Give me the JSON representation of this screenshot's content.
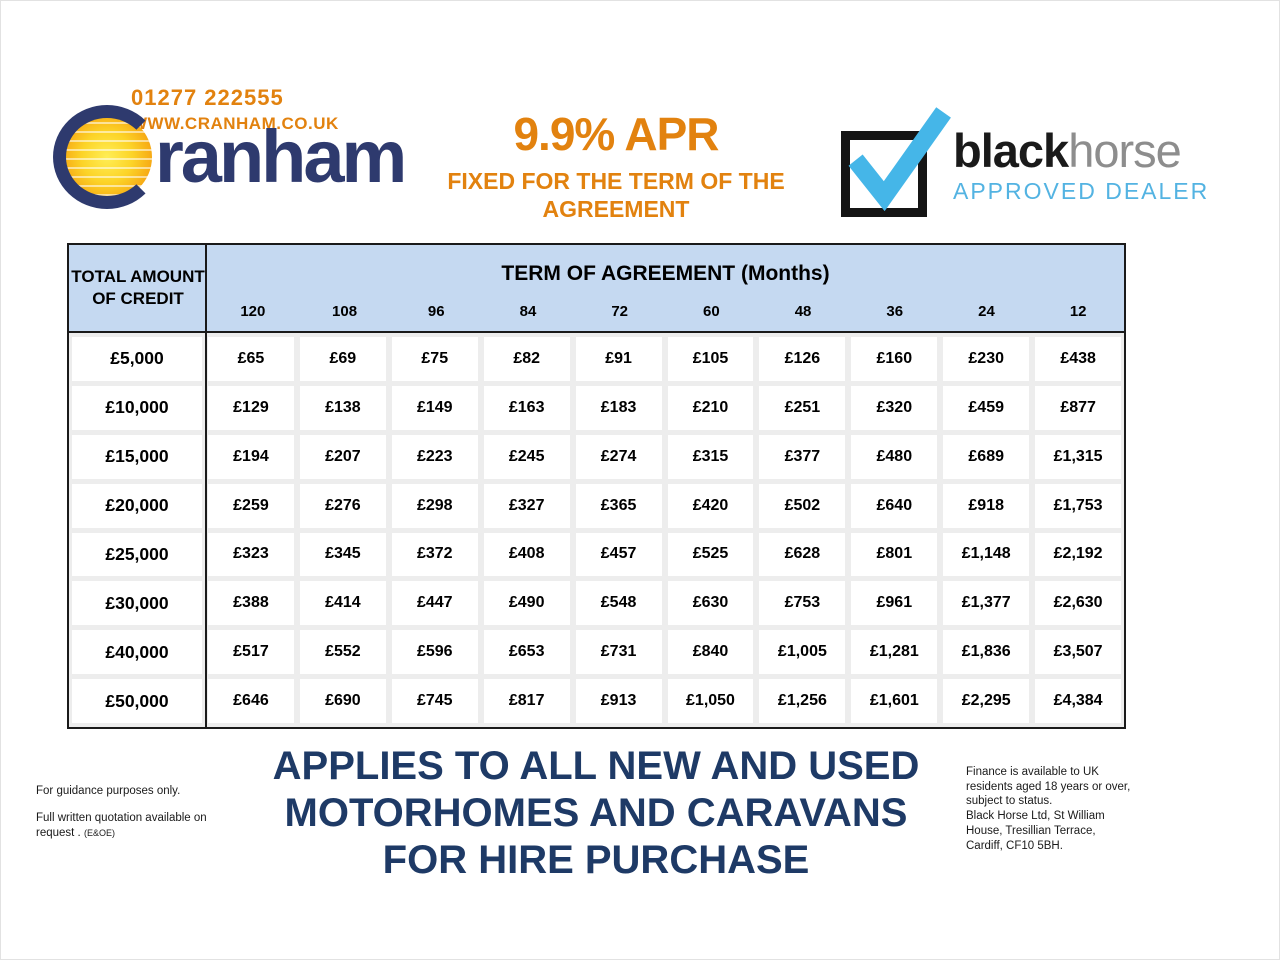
{
  "header": {
    "phone": "01277 222555",
    "website": "WWW.CRANHAM.CO.UK",
    "brand_rest": "ranham",
    "apr_title": "9.9% APR",
    "apr_subtitle": "FIXED FOR THE TERM OF THE AGREEMENT",
    "blackhorse": {
      "word_black": "black",
      "word_horse": "horse",
      "tagline": "APPROVED DEALER"
    }
  },
  "table": {
    "corner_header": "TOTAL AMOUNT OF CREDIT",
    "term_header": "TERM OF AGREEMENT (Months)",
    "months": [
      "120",
      "108",
      "96",
      "84",
      "72",
      "60",
      "48",
      "36",
      "24",
      "12"
    ],
    "rows": [
      {
        "amount": "£5,000",
        "values": [
          "£65",
          "£69",
          "£75",
          "£82",
          "£91",
          "£105",
          "£126",
          "£160",
          "£230",
          "£438"
        ]
      },
      {
        "amount": "£10,000",
        "values": [
          "£129",
          "£138",
          "£149",
          "£163",
          "£183",
          "£210",
          "£251",
          "£320",
          "£459",
          "£877"
        ]
      },
      {
        "amount": "£15,000",
        "values": [
          "£194",
          "£207",
          "£223",
          "£245",
          "£274",
          "£315",
          "£377",
          "£480",
          "£689",
          "£1,315"
        ]
      },
      {
        "amount": "£20,000",
        "values": [
          "£259",
          "£276",
          "£298",
          "£327",
          "£365",
          "£420",
          "£502",
          "£640",
          "£918",
          "£1,753"
        ]
      },
      {
        "amount": "£25,000",
        "values": [
          "£323",
          "£345",
          "£372",
          "£408",
          "£457",
          "£525",
          "£628",
          "£801",
          "£1,148",
          "£2,192"
        ]
      },
      {
        "amount": "£30,000",
        "values": [
          "£388",
          "£414",
          "£447",
          "£490",
          "£548",
          "£630",
          "£753",
          "£961",
          "£1,377",
          "£2,630"
        ]
      },
      {
        "amount": "£40,000",
        "values": [
          "£517",
          "£552",
          "£596",
          "£653",
          "£731",
          "£840",
          "£1,005",
          "£1,281",
          "£1,836",
          "£3,507"
        ]
      },
      {
        "amount": "£50,000",
        "values": [
          "£646",
          "£690",
          "£745",
          "£817",
          "£913",
          "£1,050",
          "£1,256",
          "£1,601",
          "£2,295",
          "£4,384"
        ]
      }
    ]
  },
  "footer": {
    "guidance": "For guidance purposes only.",
    "quotation": "Full written quotation available on request . ",
    "eoe": "(E&OE)",
    "headline1": "APPLIES TO ALL NEW AND USED",
    "headline2": "MOTORHOMES AND CARAVANS",
    "headline3": "FOR HIRE PURCHASE",
    "finance_note": "Finance is available to UK\nresidents aged 18 years or over,\nsubject to status.\nBlack Horse Ltd, St William\nHouse, Tresillian Terrace,\nCardiff, CF10 5BH."
  },
  "colors": {
    "orange": "#e2820f",
    "navy_logo": "#2e3a6e",
    "navy_headline": "#1e3a66",
    "blackhorse_blue": "#45b6e8",
    "horse_gray": "#8d8d8d",
    "header_blue": "#c5d9f1",
    "gutter_gray": "#ededed",
    "border_black": "#1a1a1a"
  }
}
